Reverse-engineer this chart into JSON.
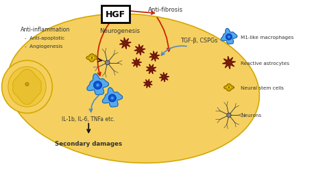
{
  "bg_color": "#ffffff",
  "spinal_cord_color": "#f5d060",
  "spinal_cord_outline": "#d4a800",
  "hgf_box_text": "HGF",
  "hgf_box_color": "#ffffff",
  "hgf_box_edge": "#000000",
  "labels": {
    "anti_fibrosis": "Anti-fibrosis",
    "tgf": "TGF-β, CSPGs",
    "anti_inflammation": "Anti-inflammation",
    "anti_apoptotic": "Anti-apoptotic",
    "angiogenesis": "Angiogenesis",
    "neurogenesis": "Neurogenesis",
    "il": "IL-1b, IL-6, TNFa etc.",
    "secondary": "Secondary damages"
  },
  "legend": {
    "m1": "M1-like macrophages",
    "reactive": "Reactive astrocytes",
    "neural": "Neural stem cells",
    "neurons": "Neurons"
  },
  "arrow_red": "#cc2200",
  "arrow_blue": "#5588bb",
  "arrow_black": "#111111",
  "text_dark": "#333333",
  "text_blue": "#336699",
  "macrophage_fill": "#55aaee",
  "macrophage_outline": "#2266aa",
  "macrophage_nucleus": "#1155cc",
  "astrocyte_color": "#8b2010",
  "astrocyte_dark": "#5a0a05",
  "neural_stem_color": "#ddaa00",
  "neural_stem_outline": "#886600",
  "neuron_color": "#555555"
}
